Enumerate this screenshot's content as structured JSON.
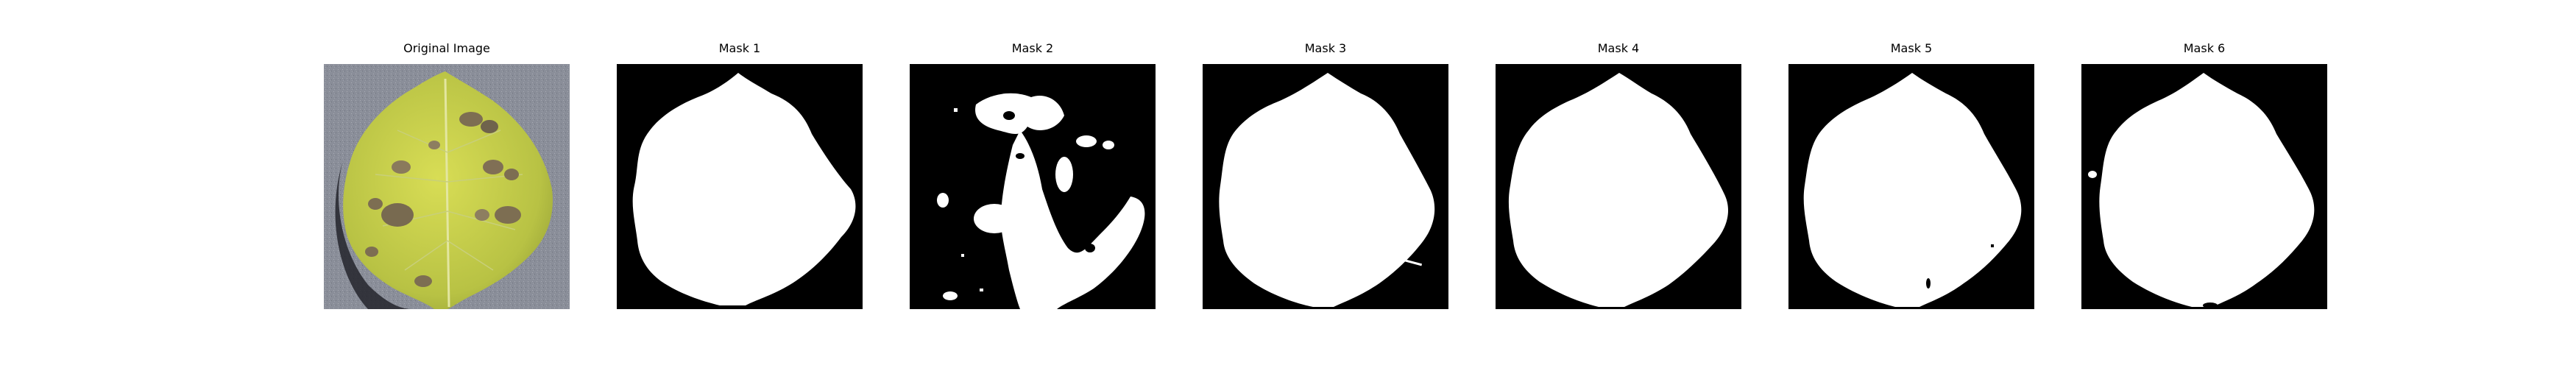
{
  "figure": {
    "panels": [
      {
        "title": "Original Image",
        "kind": "photo"
      },
      {
        "title": "Mask 1",
        "kind": "mask"
      },
      {
        "title": "Mask 2",
        "kind": "mask"
      },
      {
        "title": "Mask 3",
        "kind": "mask"
      },
      {
        "title": "Mask 4",
        "kind": "mask"
      },
      {
        "title": "Mask 5",
        "kind": "mask"
      },
      {
        "title": "Mask 6",
        "kind": "mask"
      }
    ]
  },
  "colors": {
    "mask_background": "#000000",
    "mask_foreground": "#ffffff",
    "leaf_yellow": "#cbd44a",
    "leaf_green": "#9aa63a",
    "lesion_brown": "#7d6e52",
    "backdrop_gray": "#8a8e99"
  }
}
